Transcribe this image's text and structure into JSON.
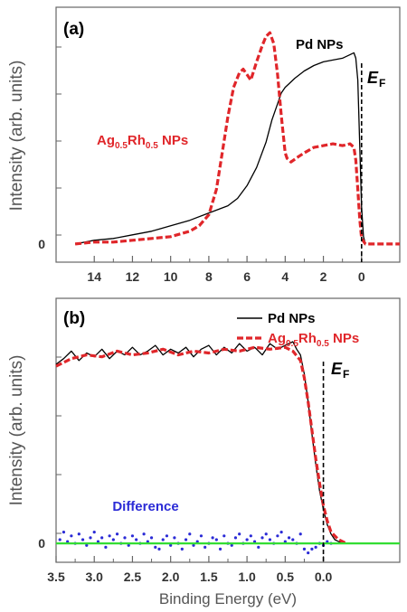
{
  "chart_data": [
    {
      "panel": "(a)",
      "type": "line",
      "xlabel": "",
      "ylabel": "Intensity (arb. units)",
      "x_reversed": true,
      "xlim": [
        16,
        -2
      ],
      "ylim": [
        -0.1,
        1.3
      ],
      "x_ticks": [
        "14",
        "12",
        "10",
        "8",
        "6",
        "4",
        "2",
        "0"
      ],
      "y_ticks": [
        "0"
      ],
      "fermi_label": {
        "main": "E",
        "sub": "F"
      },
      "series": [
        {
          "name": "Pd NPs",
          "color": "#000000",
          "style": "solid",
          "x": [
            15.0,
            14.0,
            13.0,
            12.0,
            11.0,
            10.0,
            9.0,
            8.0,
            7.0,
            6.5,
            6.0,
            5.5,
            5.0,
            4.7,
            4.4,
            4.2,
            4.0,
            3.8,
            3.5,
            3.0,
            2.5,
            2.0,
            1.5,
            1.0,
            0.6,
            0.4,
            0.3,
            0.2,
            0.1,
            0.0,
            -0.1,
            -0.2
          ],
          "y": [
            0.0,
            0.02,
            0.03,
            0.05,
            0.07,
            0.1,
            0.13,
            0.17,
            0.21,
            0.25,
            0.32,
            0.42,
            0.56,
            0.68,
            0.77,
            0.83,
            0.86,
            0.88,
            0.91,
            0.95,
            0.98,
            1.0,
            1.01,
            1.02,
            1.04,
            1.05,
            1.02,
            0.9,
            0.55,
            0.2,
            0.04,
            0.0
          ]
        },
        {
          "name": "Ag0.5Rh0.5 NPs",
          "name_parts": {
            "a": "Ag",
            "a_sub": "0.5",
            "b": "Rh",
            "b_sub": "0.5",
            "tail": " NPs"
          },
          "color": "#e0262a",
          "style": "dashed",
          "x": [
            15.0,
            14.0,
            13.0,
            12.0,
            11.0,
            10.0,
            9.0,
            8.5,
            8.0,
            7.6,
            7.3,
            7.0,
            6.7,
            6.4,
            6.2,
            6.0,
            5.8,
            5.5,
            5.2,
            5.0,
            4.8,
            4.6,
            4.4,
            4.2,
            4.0,
            3.9,
            3.7,
            3.3,
            3.0,
            2.5,
            2.0,
            1.5,
            1.0,
            0.6,
            0.4,
            0.3,
            0.2,
            0.1,
            0.0,
            -0.2,
            -2.0
          ],
          "y": [
            0.0,
            0.01,
            0.01,
            0.02,
            0.03,
            0.04,
            0.07,
            0.1,
            0.16,
            0.3,
            0.5,
            0.7,
            0.86,
            0.94,
            0.96,
            0.93,
            0.9,
            1.0,
            1.09,
            1.14,
            1.16,
            1.1,
            0.93,
            0.7,
            0.5,
            0.47,
            0.45,
            0.48,
            0.5,
            0.53,
            0.54,
            0.55,
            0.54,
            0.55,
            0.53,
            0.46,
            0.3,
            0.14,
            0.03,
            0.0,
            0.0
          ]
        }
      ]
    },
    {
      "panel": "(b)",
      "type": "line",
      "xlabel": "Binding Energy (eV)",
      "ylabel": "Intensity (arb. units)",
      "x_reversed": true,
      "xlim": [
        3.5,
        -1.0
      ],
      "ylim": [
        -0.1,
        1.3
      ],
      "x_ticks": [
        "3.5",
        "3.0",
        "2.5",
        "2.0",
        "1.5",
        "1.0",
        "0.5",
        "0.0"
      ],
      "y_ticks": [
        "0"
      ],
      "fermi_label": {
        "main": "E",
        "sub": "F"
      },
      "series": [
        {
          "name": "Pd NPs",
          "color": "#000000",
          "style": "solid",
          "x": [
            3.5,
            3.4,
            3.3,
            3.2,
            3.1,
            3.0,
            2.9,
            2.8,
            2.7,
            2.6,
            2.5,
            2.4,
            2.3,
            2.2,
            2.1,
            2.0,
            1.9,
            1.8,
            1.7,
            1.6,
            1.5,
            1.4,
            1.3,
            1.2,
            1.1,
            1.0,
            0.9,
            0.8,
            0.7,
            0.6,
            0.5,
            0.4,
            0.35,
            0.3,
            0.25,
            0.2,
            0.15,
            0.1,
            0.05,
            0.0,
            -0.05,
            -0.1,
            -0.15,
            -0.2,
            -0.3,
            -0.4
          ],
          "y": [
            0.95,
            0.98,
            1.02,
            0.97,
            1.01,
            0.99,
            1.03,
            0.98,
            1.02,
            1.0,
            1.04,
            1.0,
            1.02,
            1.05,
            1.0,
            1.03,
            1.01,
            1.04,
            0.99,
            1.03,
            1.05,
            1.0,
            1.04,
            1.01,
            1.06,
            1.02,
            1.04,
            1.0,
            1.06,
            1.03,
            1.05,
            1.07,
            1.03,
            1.0,
            0.9,
            0.75,
            0.58,
            0.42,
            0.28,
            0.18,
            0.1,
            0.05,
            0.02,
            0.01,
            0.0,
            0.0
          ]
        },
        {
          "name": "Ag0.5Rh0.5 NPs",
          "name_parts": {
            "a": "Ag",
            "a_sub": "0.5",
            "b": "Rh",
            "b_sub": "0.5",
            "tail": " NPs"
          },
          "color": "#e0262a",
          "style": "dashed",
          "x": [
            3.5,
            3.3,
            3.1,
            2.9,
            2.7,
            2.5,
            2.3,
            2.1,
            1.9,
            1.7,
            1.5,
            1.3,
            1.1,
            0.9,
            0.7,
            0.5,
            0.4,
            0.3,
            0.25,
            0.2,
            0.15,
            0.1,
            0.05,
            0.0,
            -0.05,
            -0.1,
            -0.2,
            -0.3
          ],
          "y": [
            0.94,
            0.98,
            1.0,
            0.99,
            1.02,
            1.0,
            1.01,
            1.03,
            1.0,
            1.02,
            1.01,
            1.03,
            1.02,
            1.04,
            1.03,
            1.04,
            1.02,
            0.97,
            0.88,
            0.75,
            0.6,
            0.45,
            0.32,
            0.2,
            0.12,
            0.06,
            0.02,
            0.0
          ]
        },
        {
          "name": "Difference",
          "color": "#2b2bd6",
          "style": "dots",
          "x": [
            3.45,
            3.4,
            3.35,
            3.3,
            3.25,
            3.2,
            3.15,
            3.1,
            3.05,
            3.0,
            2.95,
            2.9,
            2.85,
            2.8,
            2.75,
            2.7,
            2.65,
            2.6,
            2.55,
            2.5,
            2.45,
            2.4,
            2.35,
            2.3,
            2.25,
            2.2,
            2.15,
            2.1,
            2.05,
            2.0,
            1.95,
            1.9,
            1.85,
            1.8,
            1.75,
            1.7,
            1.65,
            1.6,
            1.55,
            1.5,
            1.45,
            1.4,
            1.35,
            1.3,
            1.25,
            1.2,
            1.15,
            1.1,
            1.05,
            1.0,
            0.95,
            0.9,
            0.85,
            0.8,
            0.75,
            0.7,
            0.65,
            0.6,
            0.55,
            0.5,
            0.45,
            0.4,
            0.35,
            0.3,
            0.25,
            0.2,
            0.15,
            0.1,
            0.05,
            0.0,
            -0.05,
            -0.1
          ],
          "y": [
            0.02,
            0.06,
            0.01,
            0.04,
            0.0,
            0.05,
            0.02,
            -0.01,
            0.03,
            0.06,
            0.01,
            0.03,
            -0.02,
            0.04,
            0.02,
            0.05,
            0.0,
            0.03,
            -0.01,
            0.04,
            0.02,
            0.0,
            0.05,
            0.01,
            0.03,
            -0.02,
            -0.03,
            0.02,
            0.04,
            -0.01,
            0.03,
            0.0,
            -0.03,
            0.02,
            0.05,
            -0.01,
            0.01,
            0.04,
            -0.02,
            0.0,
            0.03,
            0.02,
            -0.03,
            0.04,
            0.0,
            -0.01,
            0.03,
            0.05,
            0.0,
            0.02,
            0.04,
            0.01,
            -0.02,
            0.03,
            0.05,
            0.02,
            0.0,
            0.04,
            0.06,
            0.01,
            0.03,
            0.02,
            0.0,
            0.05,
            -0.03,
            -0.05,
            -0.03,
            -0.02,
            0.0,
            -0.01,
            0.01,
            0.0
          ]
        },
        {
          "name": "zero line",
          "color": "#33dd33",
          "style": "solid",
          "x": [
            3.5,
            -1.0
          ],
          "y": [
            0.0,
            0.0
          ]
        }
      ]
    }
  ]
}
